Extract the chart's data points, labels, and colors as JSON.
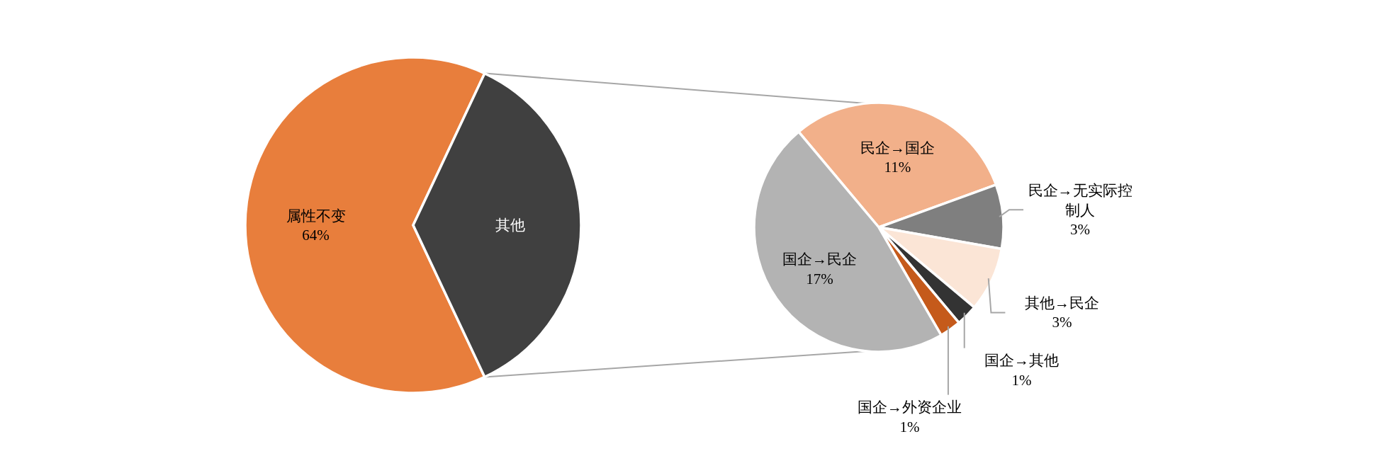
{
  "chart_data": [
    {
      "type": "pie",
      "categories": [
        "属性不变",
        "其他"
      ],
      "values": [
        64,
        36
      ],
      "colors": [
        "#e87e3c",
        "#404040"
      ],
      "value_labels": [
        "64%",
        null
      ]
    },
    {
      "type": "pie",
      "categories": [
        "民企→国企",
        "民企→无实际控制人",
        "其他→民企",
        "国企→其他",
        "国企→外资企业",
        "国企→民企"
      ],
      "values": [
        11,
        3,
        3,
        1,
        1,
        17
      ],
      "colors": [
        "#f2b08a",
        "#7f7f7f",
        "#fbe5d6",
        "#333333",
        "#c55a1b",
        "#b3b3b3"
      ],
      "value_labels": [
        "11%",
        "3%",
        "3%",
        "1%",
        "1%",
        "17%"
      ]
    }
  ]
}
